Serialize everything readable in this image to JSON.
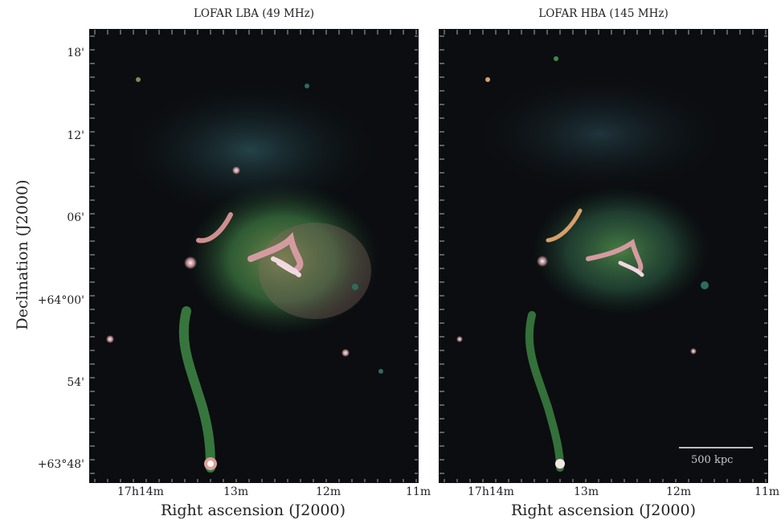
{
  "panels": [
    {
      "title": "LOFAR LBA (49 MHz)"
    },
    {
      "title": "LOFAR HBA (145 MHz)"
    }
  ],
  "y_axis": {
    "label": "Declination (J2000)",
    "ticks": [
      "18'",
      "12'",
      "06'",
      "+64°00'",
      "54'",
      "+63°48'"
    ]
  },
  "x_axis": {
    "label": "Right ascension (J2000)",
    "ticks": [
      "17h14m",
      "13m",
      "12m",
      "11m"
    ]
  },
  "scalebar": {
    "label": "500 kpc"
  },
  "colors": {
    "background": "#0b0d10",
    "faint_emission": "#2f5a60",
    "diffuse": "#3f8a47",
    "bright": "#e0a3a8"
  }
}
